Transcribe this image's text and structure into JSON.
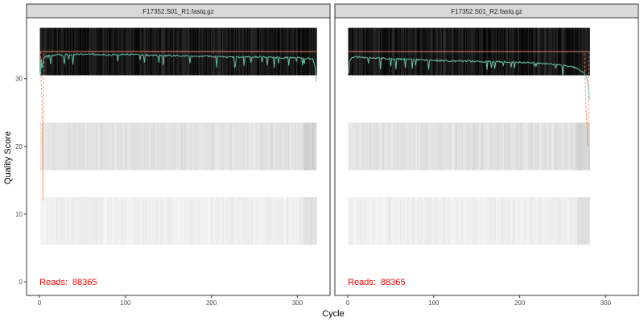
{
  "chart_data": {
    "type": "heatmap",
    "xlabel": "Cycle",
    "ylabel": "Quality Score",
    "xlim": [
      -15,
      338
    ],
    "ylim": [
      -2,
      39
    ],
    "x_ticks": [
      0,
      100,
      200,
      300
    ],
    "y_ticks": [
      0,
      10,
      20,
      30
    ],
    "grid": false,
    "colors": {
      "mean": "#66c2a5",
      "quartile": "#fc8d62",
      "reads": "#ff0000",
      "strip_fill": "#d9d9d9",
      "panel_border": "#333333"
    },
    "panels": [
      {
        "title": "F17352.S01_R1.fastq.gz",
        "reads_label": "Reads:",
        "reads_value": "88365",
        "num_cycles": 322,
        "score_bands": [
          {
            "from": 30.5,
            "to": 37.5,
            "level": "high"
          },
          {
            "from": 16.5,
            "to": 23.5,
            "level": "mid"
          },
          {
            "from": 5.5,
            "to": 12.5,
            "level": "low"
          }
        ],
        "mean_curve": [
          [
            1,
            30.5
          ],
          [
            2,
            33.0
          ],
          [
            3,
            31.5
          ],
          [
            5,
            33.2
          ],
          [
            10,
            33.4
          ],
          [
            20,
            33.5
          ],
          [
            40,
            33.6
          ],
          [
            60,
            33.6
          ],
          [
            80,
            33.5
          ],
          [
            100,
            33.6
          ],
          [
            120,
            33.5
          ],
          [
            140,
            33.4
          ],
          [
            160,
            33.4
          ],
          [
            180,
            33.3
          ],
          [
            200,
            33.3
          ],
          [
            220,
            33.2
          ],
          [
            240,
            33.2
          ],
          [
            260,
            33.2
          ],
          [
            280,
            33.1
          ],
          [
            300,
            33.1
          ],
          [
            310,
            33.0
          ],
          [
            318,
            32.9
          ],
          [
            321,
            31.5
          ],
          [
            322,
            29.6
          ]
        ],
        "quartile_upper": [
          [
            1,
            34
          ],
          [
            322,
            34
          ]
        ],
        "quartile_lower": [
          [
            1,
            34
          ],
          [
            2,
            30
          ],
          [
            3,
            26
          ],
          [
            4,
            12
          ],
          [
            5,
            34
          ],
          [
            322,
            34
          ]
        ]
      },
      {
        "title": "F17352.S01_R2.fastq.gz",
        "reads_label": "Reads:",
        "reads_value": "88365",
        "num_cycles": 281,
        "score_bands": [
          {
            "from": 30.5,
            "to": 37.5,
            "level": "high"
          },
          {
            "from": 16.5,
            "to": 23.5,
            "level": "mid"
          },
          {
            "from": 5.5,
            "to": 12.5,
            "level": "low"
          }
        ],
        "mean_curve": [
          [
            1,
            30.8
          ],
          [
            2,
            32.5
          ],
          [
            5,
            33.2
          ],
          [
            10,
            33.2
          ],
          [
            20,
            33.1
          ],
          [
            40,
            33.0
          ],
          [
            60,
            32.9
          ],
          [
            80,
            32.8
          ],
          [
            100,
            32.7
          ],
          [
            120,
            32.6
          ],
          [
            140,
            32.6
          ],
          [
            160,
            32.5
          ],
          [
            180,
            32.5
          ],
          [
            200,
            32.4
          ],
          [
            220,
            32.3
          ],
          [
            240,
            32.1
          ],
          [
            255,
            31.9
          ],
          [
            265,
            31.6
          ],
          [
            270,
            31.3
          ],
          [
            275,
            30.8
          ],
          [
            278,
            30.0
          ],
          [
            280,
            28.5
          ],
          [
            281,
            26.8
          ]
        ],
        "quartile_upper": [
          [
            1,
            34
          ],
          [
            281,
            34
          ]
        ],
        "quartile_lower": [
          [
            1,
            34
          ],
          [
            275,
            34
          ],
          [
            277,
            26
          ],
          [
            279,
            20
          ],
          [
            281,
            34
          ]
        ]
      }
    ]
  }
}
